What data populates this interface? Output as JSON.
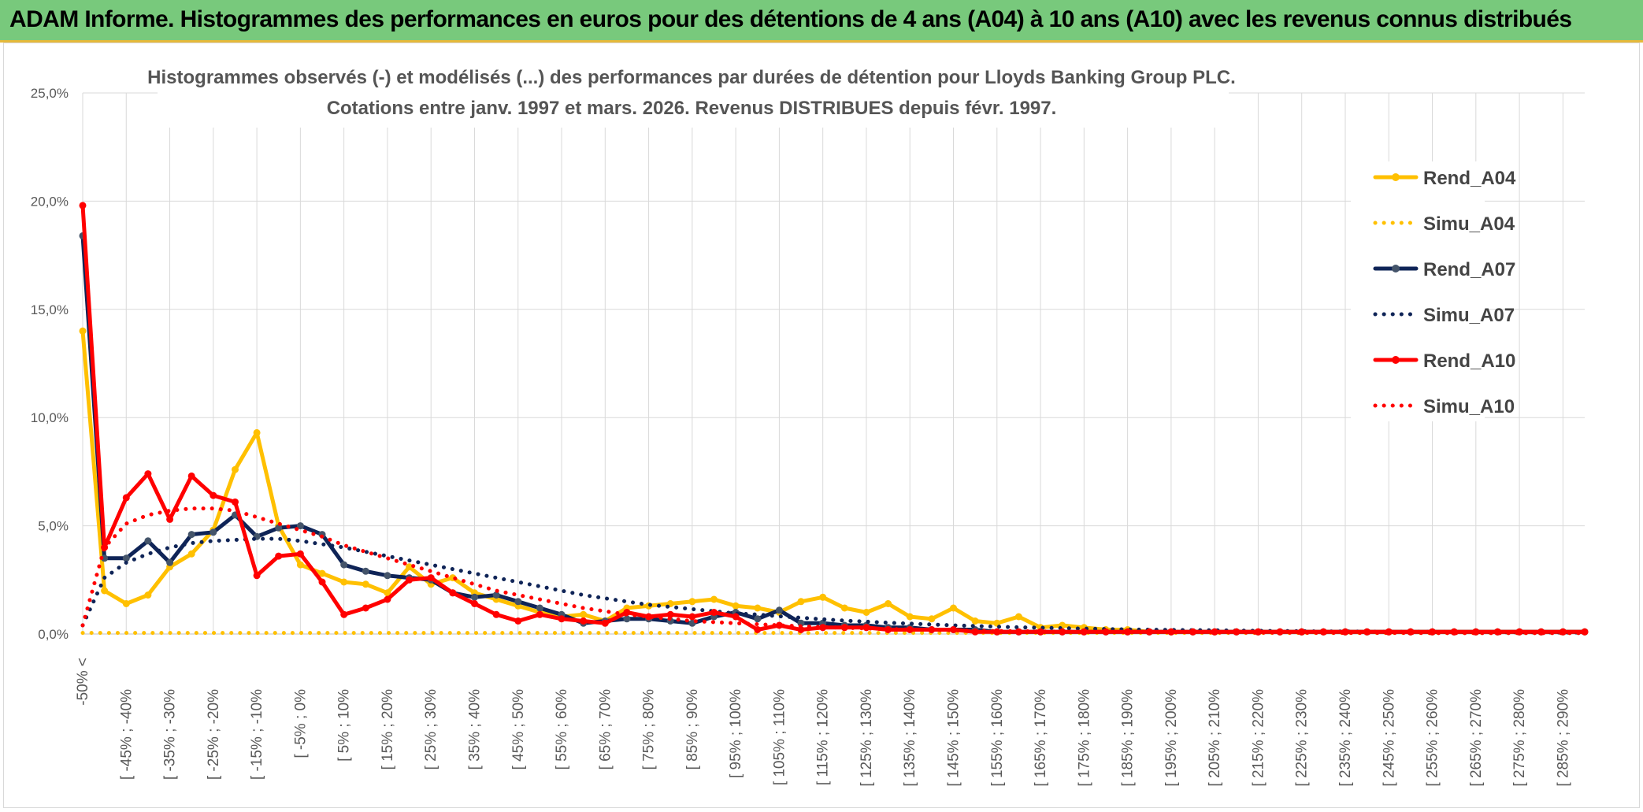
{
  "banner": {
    "title": "ADAM Informe. Histogrammes des performances en euros pour des détentions de 4 ans (A04) à 10 ans (A10) avec les revenus connus distribués"
  },
  "chart_data": {
    "type": "line",
    "title": "Histogrammes observés (-) et modélisés (...) des performances par durées de détention pour Lloyds Banking Group PLC.",
    "subtitle": "Cotations entre janv. 1997 et mars. 2026. Revenus DISTRIBUES depuis févr. 1997.",
    "xlabel": "",
    "ylabel": "",
    "ylim": [
      0,
      25
    ],
    "y_ticks": [
      "0,0%",
      "5,0%",
      "10,0%",
      "15,0%",
      "20,0%",
      "25,0%"
    ],
    "grid": true,
    "legend_position": "right",
    "x_labels": [
      "-50% <",
      "[ -45% ; -40%",
      "[ -35% ; -30%",
      "[ -25% ; -20%",
      "[ -15% ; -10%",
      "[ -5% ; 0%",
      "[ 5% ; 10%",
      "[ 15% ; 20%",
      "[ 25% ; 30%",
      "[ 35% ; 40%",
      "[ 45% ; 50%",
      "[ 55% ; 60%",
      "[ 65% ; 70%",
      "[ 75% ; 80%",
      "[ 85% ; 90%",
      "[ 95% ; 100%",
      "[ 105% ; 110%",
      "[ 115% ; 120%",
      "[ 125% ; 130%",
      "[ 135% ; 140%",
      "[ 145% ; 150%",
      "[ 155% ; 160%",
      "[ 165% ; 170%",
      "[ 175% ; 180%",
      "[ 185% ; 190%",
      "[ 195% ; 200%",
      "[ 205% ; 210%",
      "[ 215% ; 220%",
      "[ 225% ; 230%",
      "[ 235% ; 240%",
      "[ 245% ; 250%",
      "[ 255% ; 260%",
      "[ 265% ; 270%",
      "[ 275% ; 280%",
      "[ 285% ; 290%"
    ],
    "series": [
      {
        "name": "Rend_A04",
        "color": "#ffc000",
        "style": "solid",
        "values": [
          14.0,
          2.0,
          1.4,
          1.8,
          3.1,
          3.7,
          4.8,
          7.6,
          9.3,
          5.0,
          3.2,
          2.8,
          2.4,
          2.3,
          1.9,
          3.1,
          2.3,
          2.6,
          1.9,
          1.6,
          1.3,
          1.0,
          0.8,
          0.9,
          0.6,
          1.2,
          1.3,
          1.4,
          1.5,
          1.6,
          1.3,
          1.2,
          1.0,
          1.5,
          1.7,
          1.2,
          1.0,
          1.4,
          0.8,
          0.7,
          1.2,
          0.6,
          0.5,
          0.8,
          0.3,
          0.4,
          0.3,
          0.2,
          0.2,
          0.1,
          0.1,
          0.1,
          0.1,
          0.1,
          0.1,
          0.1,
          0.1,
          0.1,
          0.1,
          0.1,
          0.1,
          0.1,
          0.1,
          0.1,
          0.1,
          0.1,
          0.1,
          0.1,
          0.1,
          0.1
        ]
      },
      {
        "name": "Simu_A04",
        "color": "#ffc000",
        "style": "dotted",
        "values": [
          0.05,
          0.05,
          0.05,
          0.05,
          0.05,
          0.05,
          0.05,
          0.05,
          0.05,
          0.05,
          0.05,
          0.05,
          0.05,
          0.05,
          0.05,
          0.05,
          0.05,
          0.05,
          0.05,
          0.05,
          0.05,
          0.05,
          0.05,
          0.05,
          0.05,
          0.05,
          0.05,
          0.05,
          0.05,
          0.05,
          0.05,
          0.05,
          0.05,
          0.05,
          0.05,
          0.05,
          0.05,
          0.05,
          0.05,
          0.05,
          0.05,
          0.05,
          0.05,
          0.05,
          0.05,
          0.05,
          0.05,
          0.05,
          0.05,
          0.05,
          0.05,
          0.05,
          0.05,
          0.05,
          0.05,
          0.05,
          0.05,
          0.05,
          0.05,
          0.05,
          0.05,
          0.05,
          0.05,
          0.05,
          0.05,
          0.05,
          0.05,
          0.05,
          0.05,
          0.05
        ]
      },
      {
        "name": "Rend_A07",
        "color": "#0f2457",
        "style": "solid",
        "values": [
          18.4,
          3.5,
          3.5,
          4.3,
          3.3,
          4.6,
          4.7,
          5.5,
          4.5,
          4.9,
          5.0,
          4.6,
          3.2,
          2.9,
          2.7,
          2.6,
          2.5,
          1.9,
          1.7,
          1.8,
          1.5,
          1.2,
          0.9,
          0.5,
          0.6,
          0.7,
          0.7,
          0.6,
          0.5,
          0.8,
          1.0,
          0.7,
          1.1,
          0.5,
          0.5,
          0.4,
          0.4,
          0.3,
          0.3,
          0.2,
          0.2,
          0.2,
          0.1,
          0.1,
          0.1,
          0.1,
          0.1,
          0.1,
          0.1,
          0.1,
          0.1,
          0.1,
          0.1,
          0.1,
          0.1,
          0.1,
          0.1,
          0.1,
          0.1,
          0.1,
          0.1,
          0.1,
          0.1,
          0.1,
          0.1,
          0.1,
          0.1,
          0.1,
          0.1,
          0.1
        ]
      },
      {
        "name": "Simu_A07",
        "color": "#0f2457",
        "style": "dotted",
        "values": [
          0.4,
          2.6,
          3.3,
          3.7,
          4.0,
          4.2,
          4.3,
          4.35,
          4.4,
          4.4,
          4.3,
          4.15,
          4.0,
          3.8,
          3.6,
          3.4,
          3.2,
          3.0,
          2.8,
          2.6,
          2.4,
          2.2,
          2.0,
          1.8,
          1.65,
          1.5,
          1.35,
          1.25,
          1.15,
          1.05,
          0.95,
          0.9,
          0.82,
          0.75,
          0.68,
          0.62,
          0.57,
          0.52,
          0.48,
          0.44,
          0.4,
          0.37,
          0.34,
          0.31,
          0.29,
          0.27,
          0.25,
          0.23,
          0.21,
          0.2,
          0.19,
          0.18,
          0.17,
          0.16,
          0.15,
          0.14,
          0.13,
          0.12,
          0.12,
          0.11,
          0.1,
          0.1,
          0.1,
          0.09,
          0.09,
          0.08,
          0.08,
          0.08,
          0.07,
          0.07
        ]
      },
      {
        "name": "Rend_A10",
        "color": "#ff0000",
        "style": "solid",
        "values": [
          19.8,
          4.0,
          6.3,
          7.4,
          5.3,
          7.3,
          6.4,
          6.1,
          2.7,
          3.6,
          3.7,
          2.4,
          0.9,
          1.2,
          1.6,
          2.5,
          2.6,
          1.9,
          1.4,
          0.9,
          0.6,
          0.9,
          0.7,
          0.6,
          0.5,
          1.0,
          0.8,
          0.9,
          0.8,
          1.0,
          0.8,
          0.2,
          0.4,
          0.2,
          0.3,
          0.3,
          0.3,
          0.2,
          0.2,
          0.2,
          0.2,
          0.1,
          0.1,
          0.1,
          0.1,
          0.1,
          0.1,
          0.1,
          0.1,
          0.1,
          0.1,
          0.1,
          0.1,
          0.1,
          0.1,
          0.1,
          0.1,
          0.1,
          0.1,
          0.1,
          0.1,
          0.1,
          0.1,
          0.1,
          0.1,
          0.1,
          0.1,
          0.1,
          0.1,
          0.1
        ]
      },
      {
        "name": "Simu_A10",
        "color": "#ff0000",
        "style": "dotted",
        "values": [
          0.4,
          4.0,
          5.1,
          5.5,
          5.7,
          5.8,
          5.8,
          5.7,
          5.4,
          5.1,
          4.8,
          4.5,
          4.1,
          3.8,
          3.5,
          3.2,
          2.9,
          2.6,
          2.3,
          2.0,
          1.8,
          1.6,
          1.4,
          1.2,
          1.05,
          0.9,
          0.8,
          0.7,
          0.6,
          0.55,
          0.5,
          0.45,
          0.4,
          0.36,
          0.32,
          0.29,
          0.26,
          0.23,
          0.21,
          0.19,
          0.17,
          0.15,
          0.14,
          0.13,
          0.12,
          0.11,
          0.1,
          0.1,
          0.09,
          0.09,
          0.08,
          0.08,
          0.07,
          0.07,
          0.06,
          0.06,
          0.06,
          0.05,
          0.05,
          0.05,
          0.05,
          0.05,
          0.04,
          0.04,
          0.04,
          0.04,
          0.04,
          0.04,
          0.04,
          0.04
        ]
      }
    ]
  }
}
